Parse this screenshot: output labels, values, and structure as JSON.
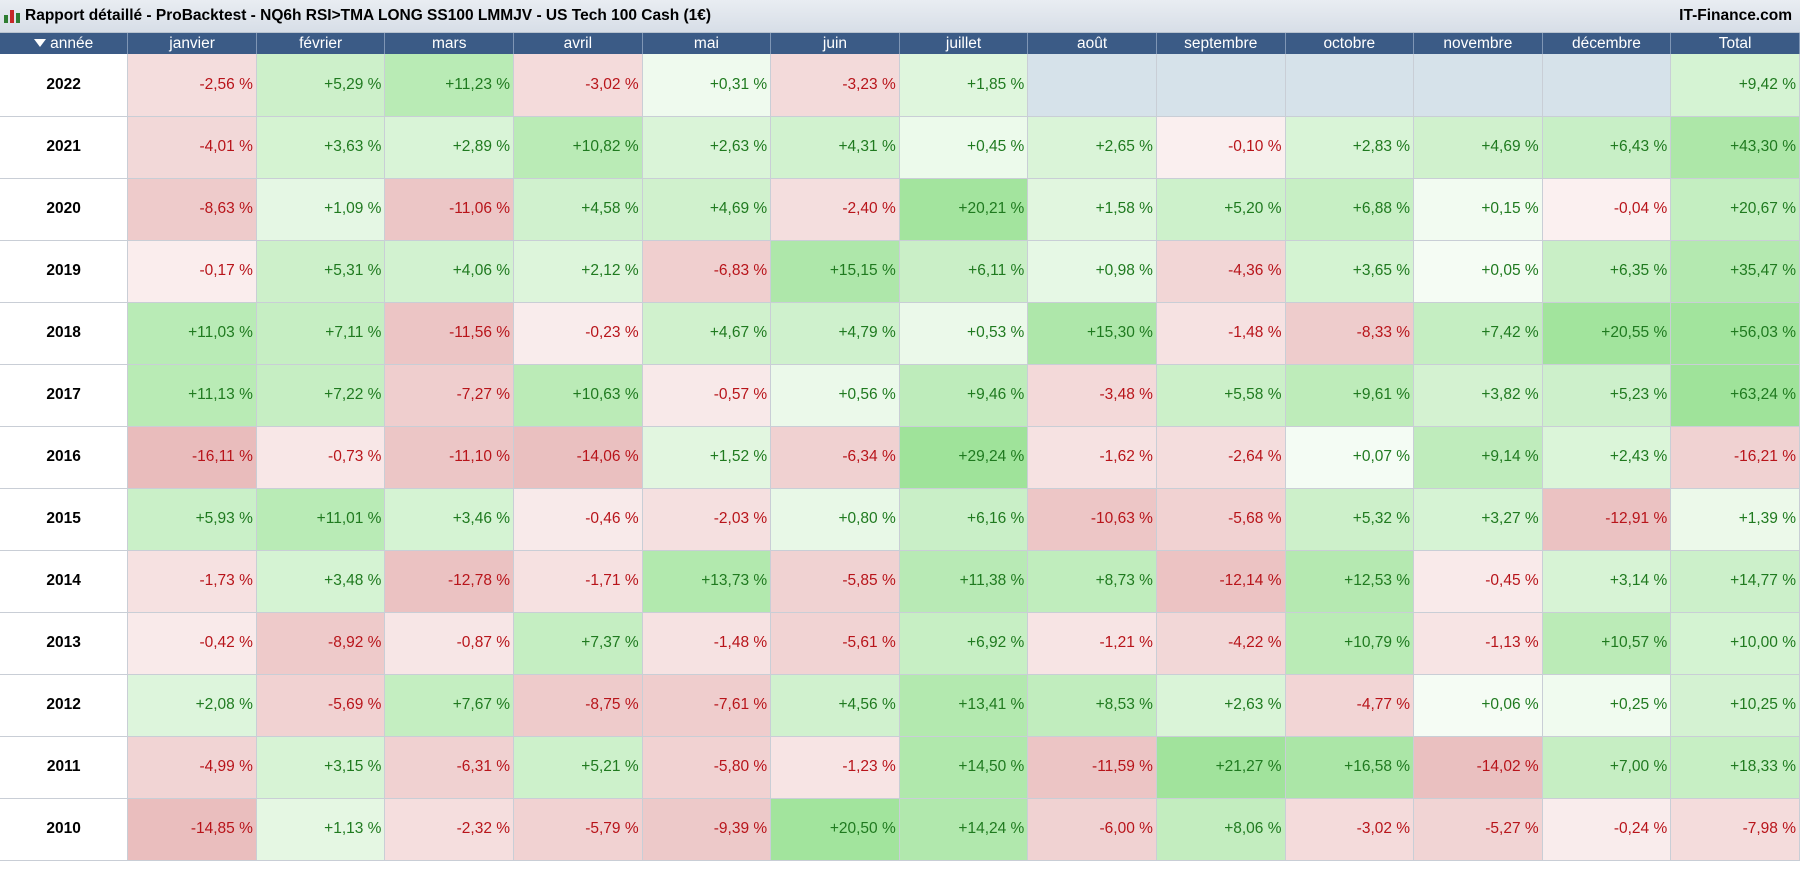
{
  "titlebar": {
    "title": "Rapport détaillé - ProBacktest - NQ6h RSI>TMA LONG SS100 LMMJV - US Tech 100 Cash (1€)",
    "brand": "IT-Finance.com",
    "icon": "chart-icon"
  },
  "table": {
    "headers": [
      "année",
      "janvier",
      "février",
      "mars",
      "avril",
      "mai",
      "juin",
      "juillet",
      "août",
      "septembre",
      "octobre",
      "novembre",
      "décembre",
      "Total"
    ],
    "rows": [
      {
        "year": "2022",
        "cells": [
          "-2,56 %",
          "+5,29 %",
          "+11,23 %",
          "-3,02 %",
          "+0,31 %",
          "-3,23 %",
          "+1,85 %",
          "",
          "",
          "",
          "",
          "",
          "+9,42 %"
        ]
      },
      {
        "year": "2021",
        "cells": [
          "-4,01 %",
          "+3,63 %",
          "+2,89 %",
          "+10,82 %",
          "+2,63 %",
          "+4,31 %",
          "+0,45 %",
          "+2,65 %",
          "-0,10 %",
          "+2,83 %",
          "+4,69 %",
          "+6,43 %",
          "+43,30 %"
        ]
      },
      {
        "year": "2020",
        "cells": [
          "-8,63 %",
          "+1,09 %",
          "-11,06 %",
          "+4,58 %",
          "+4,69 %",
          "-2,40 %",
          "+20,21 %",
          "+1,58 %",
          "+5,20 %",
          "+6,88 %",
          "+0,15 %",
          "-0,04 %",
          "+20,67 %"
        ]
      },
      {
        "year": "2019",
        "cells": [
          "-0,17 %",
          "+5,31 %",
          "+4,06 %",
          "+2,12 %",
          "-6,83 %",
          "+15,15 %",
          "+6,11 %",
          "+0,98 %",
          "-4,36 %",
          "+3,65 %",
          "+0,05 %",
          "+6,35 %",
          "+35,47 %"
        ]
      },
      {
        "year": "2018",
        "cells": [
          "+11,03 %",
          "+7,11 %",
          "-11,56 %",
          "-0,23 %",
          "+4,67 %",
          "+4,79 %",
          "+0,53 %",
          "+15,30 %",
          "-1,48 %",
          "-8,33 %",
          "+7,42 %",
          "+20,55 %",
          "+56,03 %"
        ]
      },
      {
        "year": "2017",
        "cells": [
          "+11,13 %",
          "+7,22 %",
          "-7,27 %",
          "+10,63 %",
          "-0,57 %",
          "+0,56 %",
          "+9,46 %",
          "-3,48 %",
          "+5,58 %",
          "+9,61 %",
          "+3,82 %",
          "+5,23 %",
          "+63,24 %"
        ]
      },
      {
        "year": "2016",
        "cells": [
          "-16,11 %",
          "-0,73 %",
          "-11,10 %",
          "-14,06 %",
          "+1,52 %",
          "-6,34 %",
          "+29,24 %",
          "-1,62 %",
          "-2,64 %",
          "+0,07 %",
          "+9,14 %",
          "+2,43 %",
          "-16,21 %"
        ]
      },
      {
        "year": "2015",
        "cells": [
          "+5,93 %",
          "+11,01 %",
          "+3,46 %",
          "-0,46 %",
          "-2,03 %",
          "+0,80 %",
          "+6,16 %",
          "-10,63 %",
          "-5,68 %",
          "+5,32 %",
          "+3,27 %",
          "-12,91 %",
          "+1,39 %"
        ]
      },
      {
        "year": "2014",
        "cells": [
          "-1,73 %",
          "+3,48 %",
          "-12,78 %",
          "-1,71 %",
          "+13,73 %",
          "-5,85 %",
          "+11,38 %",
          "+8,73 %",
          "-12,14 %",
          "+12,53 %",
          "-0,45 %",
          "+3,14 %",
          "+14,77 %"
        ]
      },
      {
        "year": "2013",
        "cells": [
          "-0,42 %",
          "-8,92 %",
          "-0,87 %",
          "+7,37 %",
          "-1,48 %",
          "-5,61 %",
          "+6,92 %",
          "-1,21 %",
          "-4,22 %",
          "+10,79 %",
          "-1,13 %",
          "+10,57 %",
          "+10,00 %"
        ]
      },
      {
        "year": "2012",
        "cells": [
          "+2,08 %",
          "-5,69 %",
          "+7,67 %",
          "-8,75 %",
          "-7,61 %",
          "+4,56 %",
          "+13,41 %",
          "+8,53 %",
          "+2,63 %",
          "-4,77 %",
          "+0,06 %",
          "+0,25 %",
          "+10,25 %"
        ]
      },
      {
        "year": "2011",
        "cells": [
          "-4,99 %",
          "+3,15 %",
          "-6,31 %",
          "+5,21 %",
          "-5,80 %",
          "-1,23 %",
          "+14,50 %",
          "-11,59 %",
          "+21,27 %",
          "+16,58 %",
          "-14,02 %",
          "+7,00 %",
          "+18,33 %"
        ]
      },
      {
        "year": "2010",
        "cells": [
          "-14,85 %",
          "+1,13 %",
          "-2,32 %",
          "-5,79 %",
          "-9,39 %",
          "+20,50 %",
          "+14,24 %",
          "-6,00 %",
          "+8,06 %",
          "-3,02 %",
          "-5,27 %",
          "-0,24 %",
          "-7,98 %"
        ]
      }
    ]
  },
  "colors": {
    "header_bg": "#3b5b86",
    "positive_text": "#1f7a1f",
    "negative_text": "#b8141a",
    "positive_fill": "#9fe39a",
    "negative_fill": "#e6b3b3",
    "empty_cell": "#d6e2ea"
  }
}
